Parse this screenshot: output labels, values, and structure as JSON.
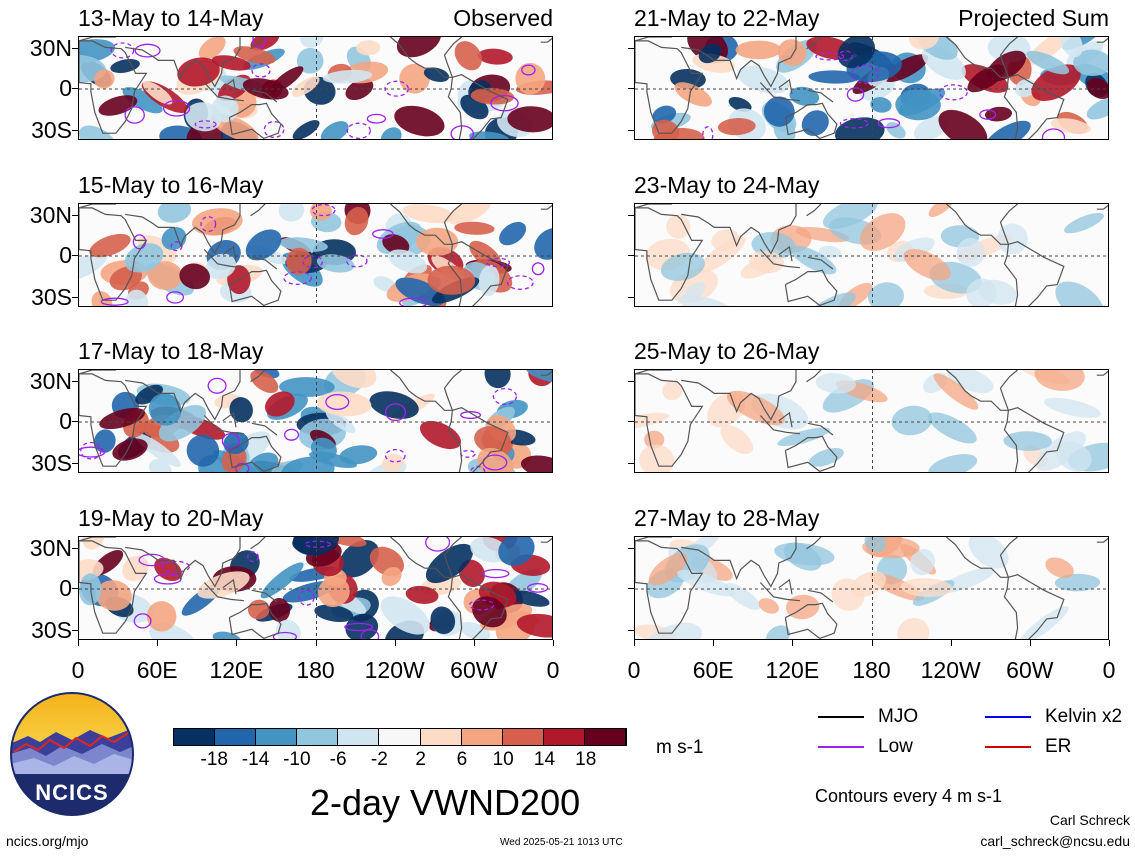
{
  "panels": [
    {
      "title": "13-May to 14-May",
      "tag": "Observed",
      "column": "left",
      "row": 0
    },
    {
      "title": "15-May to 16-May",
      "tag": "",
      "column": "left",
      "row": 1
    },
    {
      "title": "17-May to 18-May",
      "tag": "",
      "column": "left",
      "row": 2
    },
    {
      "title": "19-May to 20-May",
      "tag": "",
      "column": "left",
      "row": 3
    },
    {
      "title": "21-May to 22-May",
      "tag": "Projected Sum",
      "column": "right",
      "row": 0
    },
    {
      "title": "23-May to 24-May",
      "tag": "",
      "column": "right",
      "row": 1
    },
    {
      "title": "25-May to 26-May",
      "tag": "",
      "column": "right",
      "row": 2
    },
    {
      "title": "27-May to 28-May",
      "tag": "",
      "column": "right",
      "row": 3
    }
  ],
  "lat_labels": [
    "30N",
    "0",
    "30S"
  ],
  "lon_labels": [
    "0",
    "60E",
    "120E",
    "180",
    "120W",
    "60W",
    "0"
  ],
  "colorbar": {
    "colors": [
      "#053061",
      "#2166ac",
      "#4393c3",
      "#92c5de",
      "#d1e5f0",
      "#f7f7f7",
      "#fddbc7",
      "#f4a582",
      "#d6604d",
      "#b2182b",
      "#67001f"
    ],
    "labels": [
      "-18",
      "-14",
      "-10",
      "-6",
      "-2",
      "2",
      "6",
      "10",
      "14",
      "18"
    ],
    "units": "m s-1"
  },
  "legend": [
    {
      "label": "MJO",
      "color": "#000000"
    },
    {
      "label": "Kelvin x2",
      "color": "#0000ff"
    },
    {
      "label": "Low",
      "color": "#a020f0"
    },
    {
      "label": "ER",
      "color": "#d00000"
    }
  ],
  "contours_note": "Contours every 4 m s-1",
  "main_title": "2-day VWND200",
  "logo_text": "NCICS",
  "footer": {
    "site": "ncics.org/mjo",
    "timestamp": "Wed 2025-05-21 1013 UTC",
    "author": "Carl Schreck",
    "email": "carl_schreck@ncsu.edu"
  }
}
